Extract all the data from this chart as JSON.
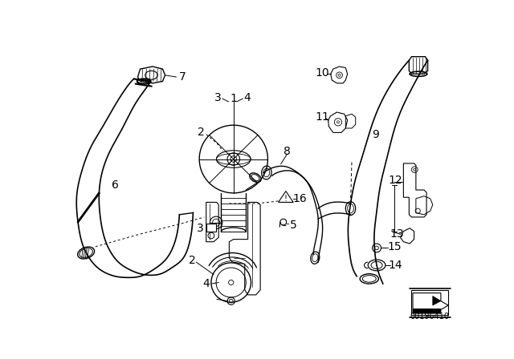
{
  "bg_color": "#ffffff",
  "line_color": "#000000",
  "part_number_text": "00196410",
  "text_fontsize": 10
}
